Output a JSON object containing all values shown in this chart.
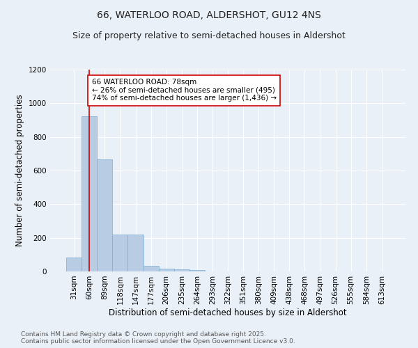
{
  "title1": "66, WATERLOO ROAD, ALDERSHOT, GU12 4NS",
  "title2": "Size of property relative to semi-detached houses in Aldershot",
  "xlabel": "Distribution of semi-detached houses by size in Aldershot",
  "ylabel": "Number of semi-detached properties",
  "bin_labels": [
    "31sqm",
    "60sqm",
    "89sqm",
    "118sqm",
    "147sqm",
    "177sqm",
    "206sqm",
    "235sqm",
    "264sqm",
    "293sqm",
    "322sqm",
    "351sqm",
    "380sqm",
    "409sqm",
    "438sqm",
    "468sqm",
    "497sqm",
    "526sqm",
    "555sqm",
    "584sqm",
    "613sqm"
  ],
  "bar_heights": [
    82,
    921,
    665,
    218,
    218,
    33,
    18,
    12,
    10,
    0,
    0,
    0,
    0,
    0,
    0,
    0,
    0,
    0,
    0,
    0,
    0
  ],
  "bar_color": "#b8cce4",
  "bar_edge_color": "#7badd3",
  "background_color": "#eaf0f8",
  "grid_color": "#ffffff",
  "vline_x": 1,
  "vline_color": "#cc0000",
  "annotation_text": "66 WATERLOO ROAD: 78sqm\n← 26% of semi-detached houses are smaller (495)\n74% of semi-detached houses are larger (1,436) →",
  "annotation_box_color": "#ffffff",
  "annotation_box_edge": "#cc0000",
  "ylim": [
    0,
    1200
  ],
  "yticks": [
    0,
    200,
    400,
    600,
    800,
    1000,
    1200
  ],
  "footer_text": "Contains HM Land Registry data © Crown copyright and database right 2025.\nContains public sector information licensed under the Open Government Licence v3.0.",
  "title1_fontsize": 10,
  "title2_fontsize": 9,
  "xlabel_fontsize": 8.5,
  "ylabel_fontsize": 8.5,
  "tick_fontsize": 7.5,
  "annotation_fontsize": 7.5,
  "footer_fontsize": 6.5
}
